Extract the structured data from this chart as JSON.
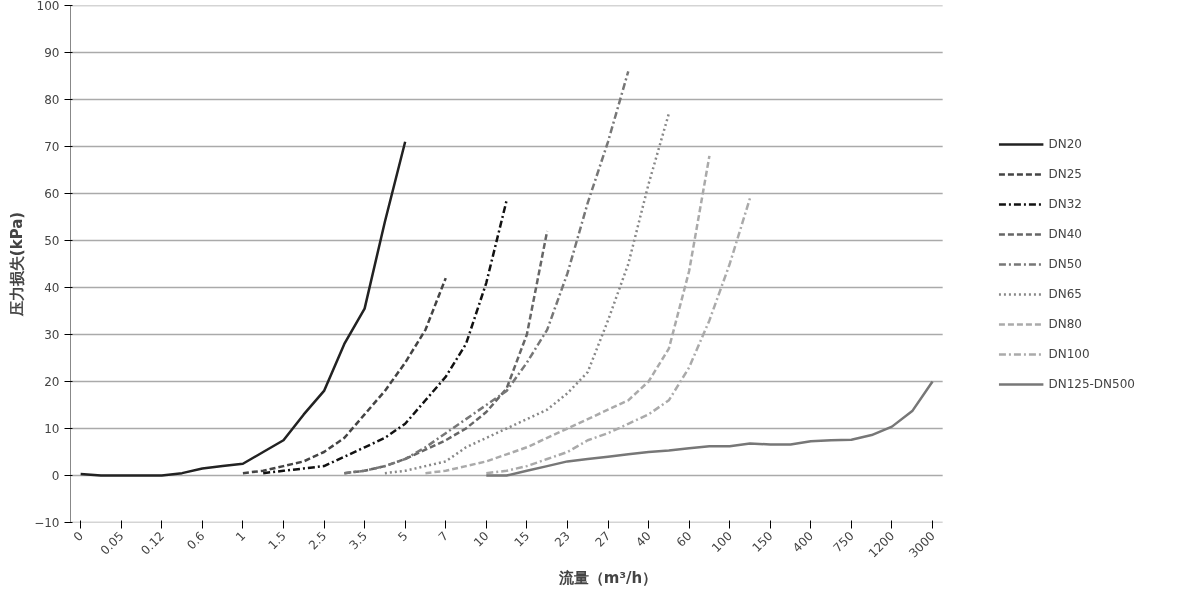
{
  "chart_data": {
    "type": "line",
    "xlabel": "流量（m³/h）",
    "ylabel": "压力损失(kPa)",
    "categories": [
      "0",
      null,
      "0.05",
      null,
      "0.12",
      null,
      "0.6",
      null,
      "1",
      null,
      "1.5",
      null,
      "2.5",
      null,
      "3.5",
      null,
      "5",
      null,
      "7",
      null,
      "10",
      null,
      "15",
      null,
      "23",
      null,
      "27",
      null,
      "40",
      null,
      "60",
      null,
      "100",
      null,
      "150",
      null,
      "400",
      null,
      "750",
      null,
      "1200",
      null,
      "3000"
    ],
    "ylim": [
      -10,
      100
    ],
    "yticks": [
      -10,
      0,
      10,
      20,
      30,
      40,
      50,
      60,
      70,
      80,
      90,
      100
    ],
    "grid": "y",
    "legend": "right",
    "marker": "none",
    "series": [
      {
        "name": "DN20",
        "color": "#222222",
        "line_style": "solid",
        "values": [
          0.3,
          0,
          0,
          0,
          0,
          0.5,
          1.5,
          2,
          2.5,
          5,
          7.5,
          13,
          18,
          28,
          35.5,
          54,
          71,
          null,
          null,
          null,
          null,
          null,
          null,
          null,
          null,
          null,
          null,
          null,
          null,
          null,
          null,
          null,
          null,
          null,
          null,
          null,
          null,
          null,
          null,
          null,
          null,
          null,
          null
        ]
      },
      {
        "name": "DN25",
        "color": "#444444",
        "line_style": "dashed",
        "values": [
          null,
          null,
          null,
          null,
          null,
          null,
          null,
          null,
          0.5,
          1,
          2,
          3,
          5,
          8,
          13,
          18,
          24,
          31,
          42,
          null,
          null,
          null,
          null,
          null,
          null,
          null,
          null,
          null,
          null,
          null,
          null,
          null,
          null,
          null,
          null,
          null,
          null,
          null,
          null,
          null,
          null,
          null,
          null
        ]
      },
      {
        "name": "DN32",
        "color": "#111111",
        "line_style": "dashdot",
        "values": [
          null,
          null,
          null,
          null,
          null,
          null,
          null,
          null,
          null,
          0.5,
          1,
          1.5,
          2,
          4,
          6,
          8,
          11,
          16,
          21,
          28,
          41,
          58.5,
          null,
          null,
          null,
          null,
          null,
          null,
          null,
          null,
          null,
          null,
          null,
          null,
          null,
          null,
          null,
          null,
          null,
          null,
          null,
          null,
          null
        ]
      },
      {
        "name": "DN40",
        "color": "#666666",
        "line_style": "dashed",
        "values": [
          null,
          null,
          null,
          null,
          null,
          null,
          null,
          null,
          null,
          null,
          null,
          null,
          null,
          0.5,
          1,
          2,
          3.5,
          5.5,
          7.5,
          10,
          13.5,
          18.5,
          30,
          52,
          null,
          null,
          null,
          null,
          null,
          null,
          null,
          null,
          null,
          null,
          null,
          null,
          null,
          null,
          null,
          null,
          null,
          null,
          null
        ]
      },
      {
        "name": "DN50",
        "color": "#777777",
        "line_style": "dashdot",
        "values": [
          null,
          null,
          null,
          null,
          null,
          null,
          null,
          null,
          null,
          null,
          null,
          null,
          null,
          0.5,
          1,
          2,
          3.5,
          6,
          9,
          12,
          15,
          18,
          24,
          31,
          43,
          58,
          71,
          86,
          null,
          null,
          null,
          null,
          null,
          null,
          null,
          null,
          null,
          null,
          null,
          null,
          null,
          null,
          null
        ]
      },
      {
        "name": "DN65",
        "color": "#888888",
        "line_style": "dotted",
        "values": [
          null,
          null,
          null,
          null,
          null,
          null,
          null,
          null,
          null,
          null,
          null,
          null,
          null,
          null,
          null,
          0.5,
          1,
          2,
          3,
          6,
          8,
          10,
          12,
          14,
          17.5,
          22,
          33,
          45,
          62,
          77,
          null,
          null,
          null,
          null,
          null,
          null,
          null,
          null,
          null,
          null,
          null,
          null,
          null
        ]
      },
      {
        "name": "DN80",
        "color": "#aaaaaa",
        "line_style": "dashed",
        "values": [
          null,
          null,
          null,
          null,
          null,
          null,
          null,
          null,
          null,
          null,
          null,
          null,
          null,
          null,
          null,
          null,
          null,
          0.5,
          1,
          2,
          3,
          4.5,
          6,
          8,
          10,
          12,
          14,
          16,
          20,
          27,
          43.5,
          68,
          null,
          null,
          null,
          null,
          null,
          null,
          null,
          null,
          null,
          null,
          null
        ]
      },
      {
        "name": "DN100",
        "color": "#aaaaaa",
        "line_style": "dashdot",
        "values": [
          null,
          null,
          null,
          null,
          null,
          null,
          null,
          null,
          null,
          null,
          null,
          null,
          null,
          null,
          null,
          null,
          null,
          null,
          null,
          null,
          0.5,
          1,
          2,
          3.5,
          5,
          7.5,
          9,
          11,
          13,
          16,
          23,
          33,
          45,
          59,
          null,
          null,
          null,
          null,
          null,
          null,
          null,
          null,
          null
        ]
      },
      {
        "name": "DN125-DN500",
        "color": "#777777",
        "line_style": "solid",
        "values": [
          null,
          null,
          null,
          null,
          null,
          null,
          null,
          null,
          null,
          null,
          null,
          null,
          null,
          null,
          null,
          null,
          null,
          null,
          null,
          null,
          0,
          0,
          1,
          2,
          3,
          3.5,
          4,
          4.5,
          5,
          5.3,
          5.8,
          6.2,
          6.2,
          6.8,
          6.6,
          6.6,
          7.3,
          7.5,
          7.6,
          8.6,
          10.4,
          13.7,
          20
        ]
      }
    ]
  }
}
